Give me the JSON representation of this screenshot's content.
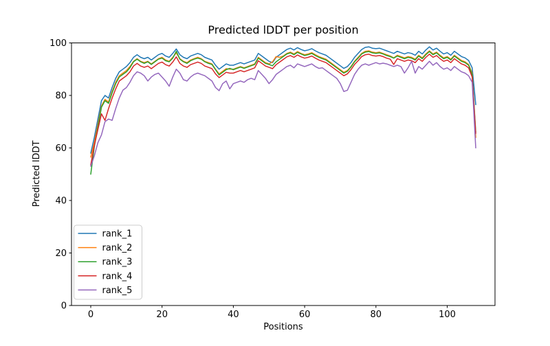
{
  "figure": {
    "background": "#ffffff",
    "spine_color": "#000000"
  },
  "chart_data": {
    "type": "line",
    "title": "Predicted lDDT per position",
    "xlabel": "Positions",
    "ylabel": "Predicted lDDT",
    "xlim": [
      -5.4,
      113.4
    ],
    "ylim": [
      0,
      100
    ],
    "xticks": [
      0,
      20,
      40,
      60,
      80,
      100
    ],
    "yticks": [
      0,
      20,
      40,
      60,
      80,
      100
    ],
    "grid": false,
    "legend_position": "lower left",
    "x_start": 0,
    "x_step": 1,
    "n_points": 109,
    "series": [
      {
        "name": "rank_1",
        "color": "#1f77b4",
        "values": [
          58,
          64,
          71,
          78,
          80,
          79,
          83,
          86.5,
          89,
          90,
          91,
          92.5,
          94.5,
          95.5,
          94.5,
          94,
          94.5,
          93.5,
          94.5,
          95.5,
          96,
          95,
          94.5,
          96,
          97.7,
          95.5,
          94.5,
          94,
          95,
          95.5,
          96,
          95.5,
          94.5,
          94,
          93.5,
          91.5,
          90,
          91,
          92,
          91.5,
          91.5,
          92,
          92.5,
          92,
          92.5,
          93,
          93.5,
          96,
          95,
          94,
          93,
          92.5,
          94.5,
          95.5,
          96.5,
          97.5,
          98,
          97.3,
          98.2,
          97.5,
          97,
          97.3,
          97.8,
          97,
          96.3,
          95.8,
          95.3,
          94.3,
          93.3,
          92.3,
          91.3,
          90.3,
          91,
          92.5,
          94.5,
          96,
          97.5,
          98.3,
          98.5,
          98,
          97.8,
          98,
          97.5,
          97,
          96.5,
          96,
          96.8,
          96.3,
          95.8,
          96.3,
          96,
          95.3,
          96.8,
          95.8,
          97.3,
          98.5,
          97.3,
          98,
          96.8,
          95.8,
          96.3,
          95.3,
          96.8,
          95.8,
          94.8,
          94.3,
          93.3,
          90.5,
          76.5
        ]
      },
      {
        "name": "rank_2",
        "color": "#ff7f0e",
        "values": [
          56.5,
          62,
          69,
          76,
          78.5,
          77.5,
          81.5,
          85,
          87.5,
          88.5,
          89.5,
          91,
          93,
          94,
          93,
          92.5,
          93,
          92,
          93,
          94,
          94.5,
          93.5,
          93,
          94.5,
          96.2,
          94,
          93,
          92.5,
          93.5,
          94,
          94.5,
          94,
          93,
          92.5,
          92,
          90,
          88.2,
          89.2,
          90.2,
          90,
          90,
          90.5,
          91,
          90.5,
          91,
          91.5,
          92,
          94.5,
          93.5,
          92.5,
          92,
          92.8,
          94.8,
          94.5,
          95,
          96,
          96.5,
          95.8,
          96.7,
          96,
          95.5,
          95.8,
          96.3,
          95.5,
          94.8,
          94.3,
          93.8,
          92.8,
          91.8,
          90.8,
          89.8,
          88.8,
          89.5,
          91,
          93,
          94.5,
          96,
          96.8,
          97,
          96.5,
          96.3,
          96.5,
          96,
          95.5,
          95,
          94.3,
          95.3,
          94.8,
          94.3,
          94.8,
          94.5,
          93.8,
          95.3,
          94.3,
          95.8,
          97,
          95.8,
          96.5,
          95.3,
          94.3,
          94.8,
          93.8,
          95.3,
          94.3,
          93.3,
          92.8,
          91.8,
          88.5,
          64
        ]
      },
      {
        "name": "rank_3",
        "color": "#2ca02c",
        "values": [
          50,
          60.5,
          68,
          75.5,
          78,
          77,
          81,
          84.5,
          87,
          88,
          89,
          90.5,
          92.8,
          93.8,
          92.8,
          92.2,
          92.8,
          91.8,
          92.8,
          93.8,
          94.2,
          93.2,
          92.8,
          94.2,
          96.8,
          93.8,
          92.8,
          92.2,
          93.2,
          93.8,
          94.2,
          93.8,
          92.8,
          92.2,
          91.8,
          89.8,
          87.8,
          88.8,
          89.8,
          90.3,
          89.8,
          90.3,
          90.8,
          90.3,
          90.8,
          91.3,
          91.8,
          94.2,
          93.2,
          92.2,
          91.8,
          91.3,
          92.8,
          93.8,
          94.8,
          95.8,
          96.2,
          95.5,
          96.4,
          95.8,
          95.2,
          95.5,
          96,
          95.2,
          94.5,
          94,
          93.5,
          92.5,
          91.5,
          90.5,
          89.5,
          88.5,
          89.2,
          90.8,
          92.8,
          94.2,
          95.8,
          96.5,
          96.7,
          96.2,
          96,
          96.2,
          95.8,
          95.2,
          94.8,
          94.2,
          95,
          94.5,
          94,
          94.5,
          94.2,
          93.5,
          95,
          94,
          95.5,
          96.7,
          95.5,
          96.2,
          95,
          94,
          94.5,
          93.5,
          95,
          94,
          93,
          92.5,
          91.5,
          88,
          66
        ]
      },
      {
        "name": "rank_4",
        "color": "#d62728",
        "values": [
          53.5,
          61,
          67,
          73,
          70.5,
          75,
          79,
          82.5,
          85.5,
          86.5,
          87.5,
          89,
          91.2,
          92.2,
          91.2,
          90.7,
          91.2,
          90.2,
          91.2,
          92.2,
          92.7,
          91.7,
          91.2,
          92.7,
          94.7,
          92.2,
          91.2,
          90.7,
          91.7,
          92.2,
          92.7,
          92.2,
          91.2,
          90.7,
          90.2,
          88.2,
          86.8,
          87.8,
          88.8,
          88.5,
          88.5,
          89,
          89.5,
          89,
          89.5,
          90,
          90.5,
          93.2,
          92.2,
          91.2,
          90.7,
          90.2,
          91.7,
          92.7,
          93.7,
          94.7,
          95.2,
          94.5,
          95.4,
          94.7,
          94.2,
          94.5,
          95,
          94.2,
          93.5,
          93,
          92.5,
          91.5,
          90.5,
          89.5,
          88.5,
          87.5,
          88.2,
          89.8,
          91.8,
          93.2,
          94.8,
          95.5,
          95.7,
          95.2,
          95,
          95.2,
          94.8,
          94.2,
          93.8,
          91.8,
          94,
          93.5,
          93,
          93.5,
          93.2,
          92.5,
          94,
          93,
          94.5,
          95.7,
          94.5,
          95.2,
          94,
          93,
          93.5,
          92.5,
          94,
          93,
          92,
          91.5,
          90.5,
          87,
          65.5
        ]
      },
      {
        "name": "rank_5",
        "color": "#9467bd",
        "values": [
          53,
          57,
          62,
          65,
          70,
          71,
          70.5,
          75,
          79,
          82,
          83,
          85,
          87.5,
          89,
          88.5,
          87.5,
          85.5,
          87,
          88,
          88.5,
          87,
          85.5,
          83.5,
          87,
          90,
          88.5,
          86,
          85.5,
          87,
          88,
          88.5,
          88,
          87.5,
          86.5,
          85.5,
          83,
          81.8,
          84.5,
          85.5,
          82.5,
          84.5,
          85,
          85.5,
          85,
          86,
          86.5,
          86,
          89.5,
          88,
          86.5,
          84.5,
          86,
          88,
          89,
          90,
          91,
          91.5,
          90.5,
          92,
          91.5,
          91,
          91.5,
          92,
          91,
          90.3,
          90.5,
          89.5,
          88.5,
          87.5,
          86.5,
          84.5,
          81.5,
          82,
          85,
          88,
          90,
          91.5,
          92,
          91.5,
          92,
          92.5,
          92,
          92.3,
          92,
          91.5,
          91,
          91.5,
          91,
          88.5,
          90.5,
          93,
          88.5,
          91,
          90,
          91.5,
          93,
          91.5,
          92.5,
          91,
          90,
          90.5,
          89.5,
          91,
          90,
          89,
          88.5,
          87.5,
          85,
          60
        ]
      }
    ]
  }
}
